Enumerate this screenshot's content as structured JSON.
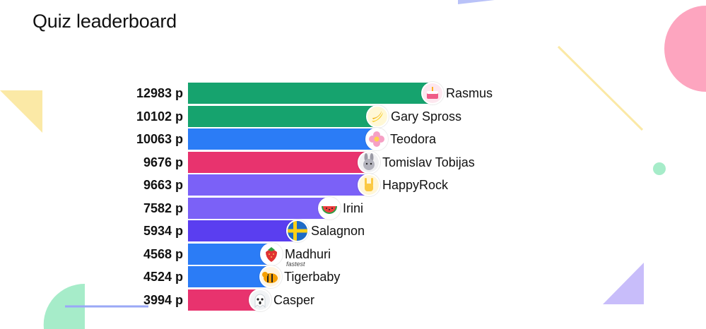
{
  "title": "Quiz leaderboard",
  "score_unit": "p",
  "max_score": 12983,
  "players": [
    {
      "name": "Rasmus",
      "score": 12983,
      "color": "#16a36e",
      "avatar_icon": "cake-icon"
    },
    {
      "name": "Gary Spross",
      "score": 10102,
      "color": "#16a36e",
      "avatar_icon": "banana-icon"
    },
    {
      "name": "Teodora",
      "score": 10063,
      "color": "#2b7cf6",
      "avatar_icon": "flower-icon"
    },
    {
      "name": "Tomislav Tobijas",
      "score": 9676,
      "color": "#e8336e",
      "avatar_icon": "bunny-icon"
    },
    {
      "name": "HappyRock",
      "score": 9663,
      "color": "#7b61f7",
      "avatar_icon": "rock-hand-icon"
    },
    {
      "name": "Irini",
      "score": 7582,
      "color": "#7b61f7",
      "avatar_icon": "watermelon-icon"
    },
    {
      "name": "Salagnon",
      "score": 5934,
      "color": "#5a3ef0",
      "avatar_icon": "sweden-flag-icon"
    },
    {
      "name": "Madhuri",
      "score": 4568,
      "color": "#2b7cf6",
      "avatar_icon": "strawberry-icon",
      "badge": "fastest"
    },
    {
      "name": "Tigerbaby",
      "score": 4524,
      "color": "#2b7cf6",
      "avatar_icon": "tiger-icon"
    },
    {
      "name": "Casper",
      "score": 3994,
      "color": "#e8336e",
      "avatar_icon": "ghost-icon"
    }
  ],
  "chart_data": {
    "type": "bar",
    "title": "Quiz leaderboard",
    "orientation": "horizontal",
    "categories": [
      "Rasmus",
      "Gary Spross",
      "Teodora",
      "Tomislav Tobijas",
      "HappyRock",
      "Irini",
      "Salagnon",
      "Madhuri",
      "Tigerbaby",
      "Casper"
    ],
    "values": [
      12983,
      10102,
      10063,
      9676,
      9663,
      7582,
      5934,
      4568,
      4524,
      3994
    ],
    "value_labels": [
      "12983 p",
      "10102 p",
      "10063 p",
      "9676 p",
      "9663 p",
      "7582 p",
      "5934 p",
      "4568 p",
      "4524 p",
      "3994 p"
    ],
    "annotations": [
      {
        "category": "Madhuri",
        "text": "fastest"
      }
    ]
  },
  "decorations": {
    "yellow": "#fbe9a6",
    "pink": "#fda5bf",
    "mint": "#a6ecc9",
    "lavender": "#c8bdfa",
    "periwinkle": "#9aa8f6"
  }
}
